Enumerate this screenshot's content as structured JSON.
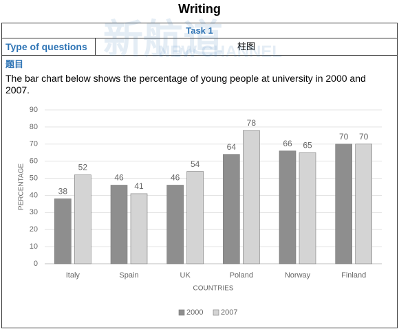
{
  "header": {
    "title": "Writing"
  },
  "watermark": {
    "brand": "新航道",
    "text": "NEW CHANNEL"
  },
  "task": {
    "title": "Task 1",
    "type_label": "Type of questions",
    "type_value": "柱图",
    "prompt_heading": "题目",
    "prompt": "The bar chart below shows the percentage of young people at university in 2000 and 2007."
  },
  "chart_data": {
    "type": "bar",
    "categories": [
      "Italy",
      "Spain",
      "UK",
      "Poland",
      "Norway",
      "Finland"
    ],
    "series": [
      {
        "name": "2000",
        "color": "#8e8e8e",
        "values": [
          38,
          46,
          46,
          64,
          66,
          70
        ]
      },
      {
        "name": "2007",
        "color": "#d4d4d4",
        "values": [
          52,
          41,
          54,
          78,
          65,
          70
        ]
      }
    ],
    "ylim": [
      0,
      90
    ],
    "yticks": [
      0,
      10,
      20,
      30,
      40,
      50,
      60,
      70,
      80,
      90
    ],
    "xlabel": "COUNTRIES",
    "ylabel": "PERCENTAGE",
    "grid": true,
    "legend": "bottom"
  }
}
